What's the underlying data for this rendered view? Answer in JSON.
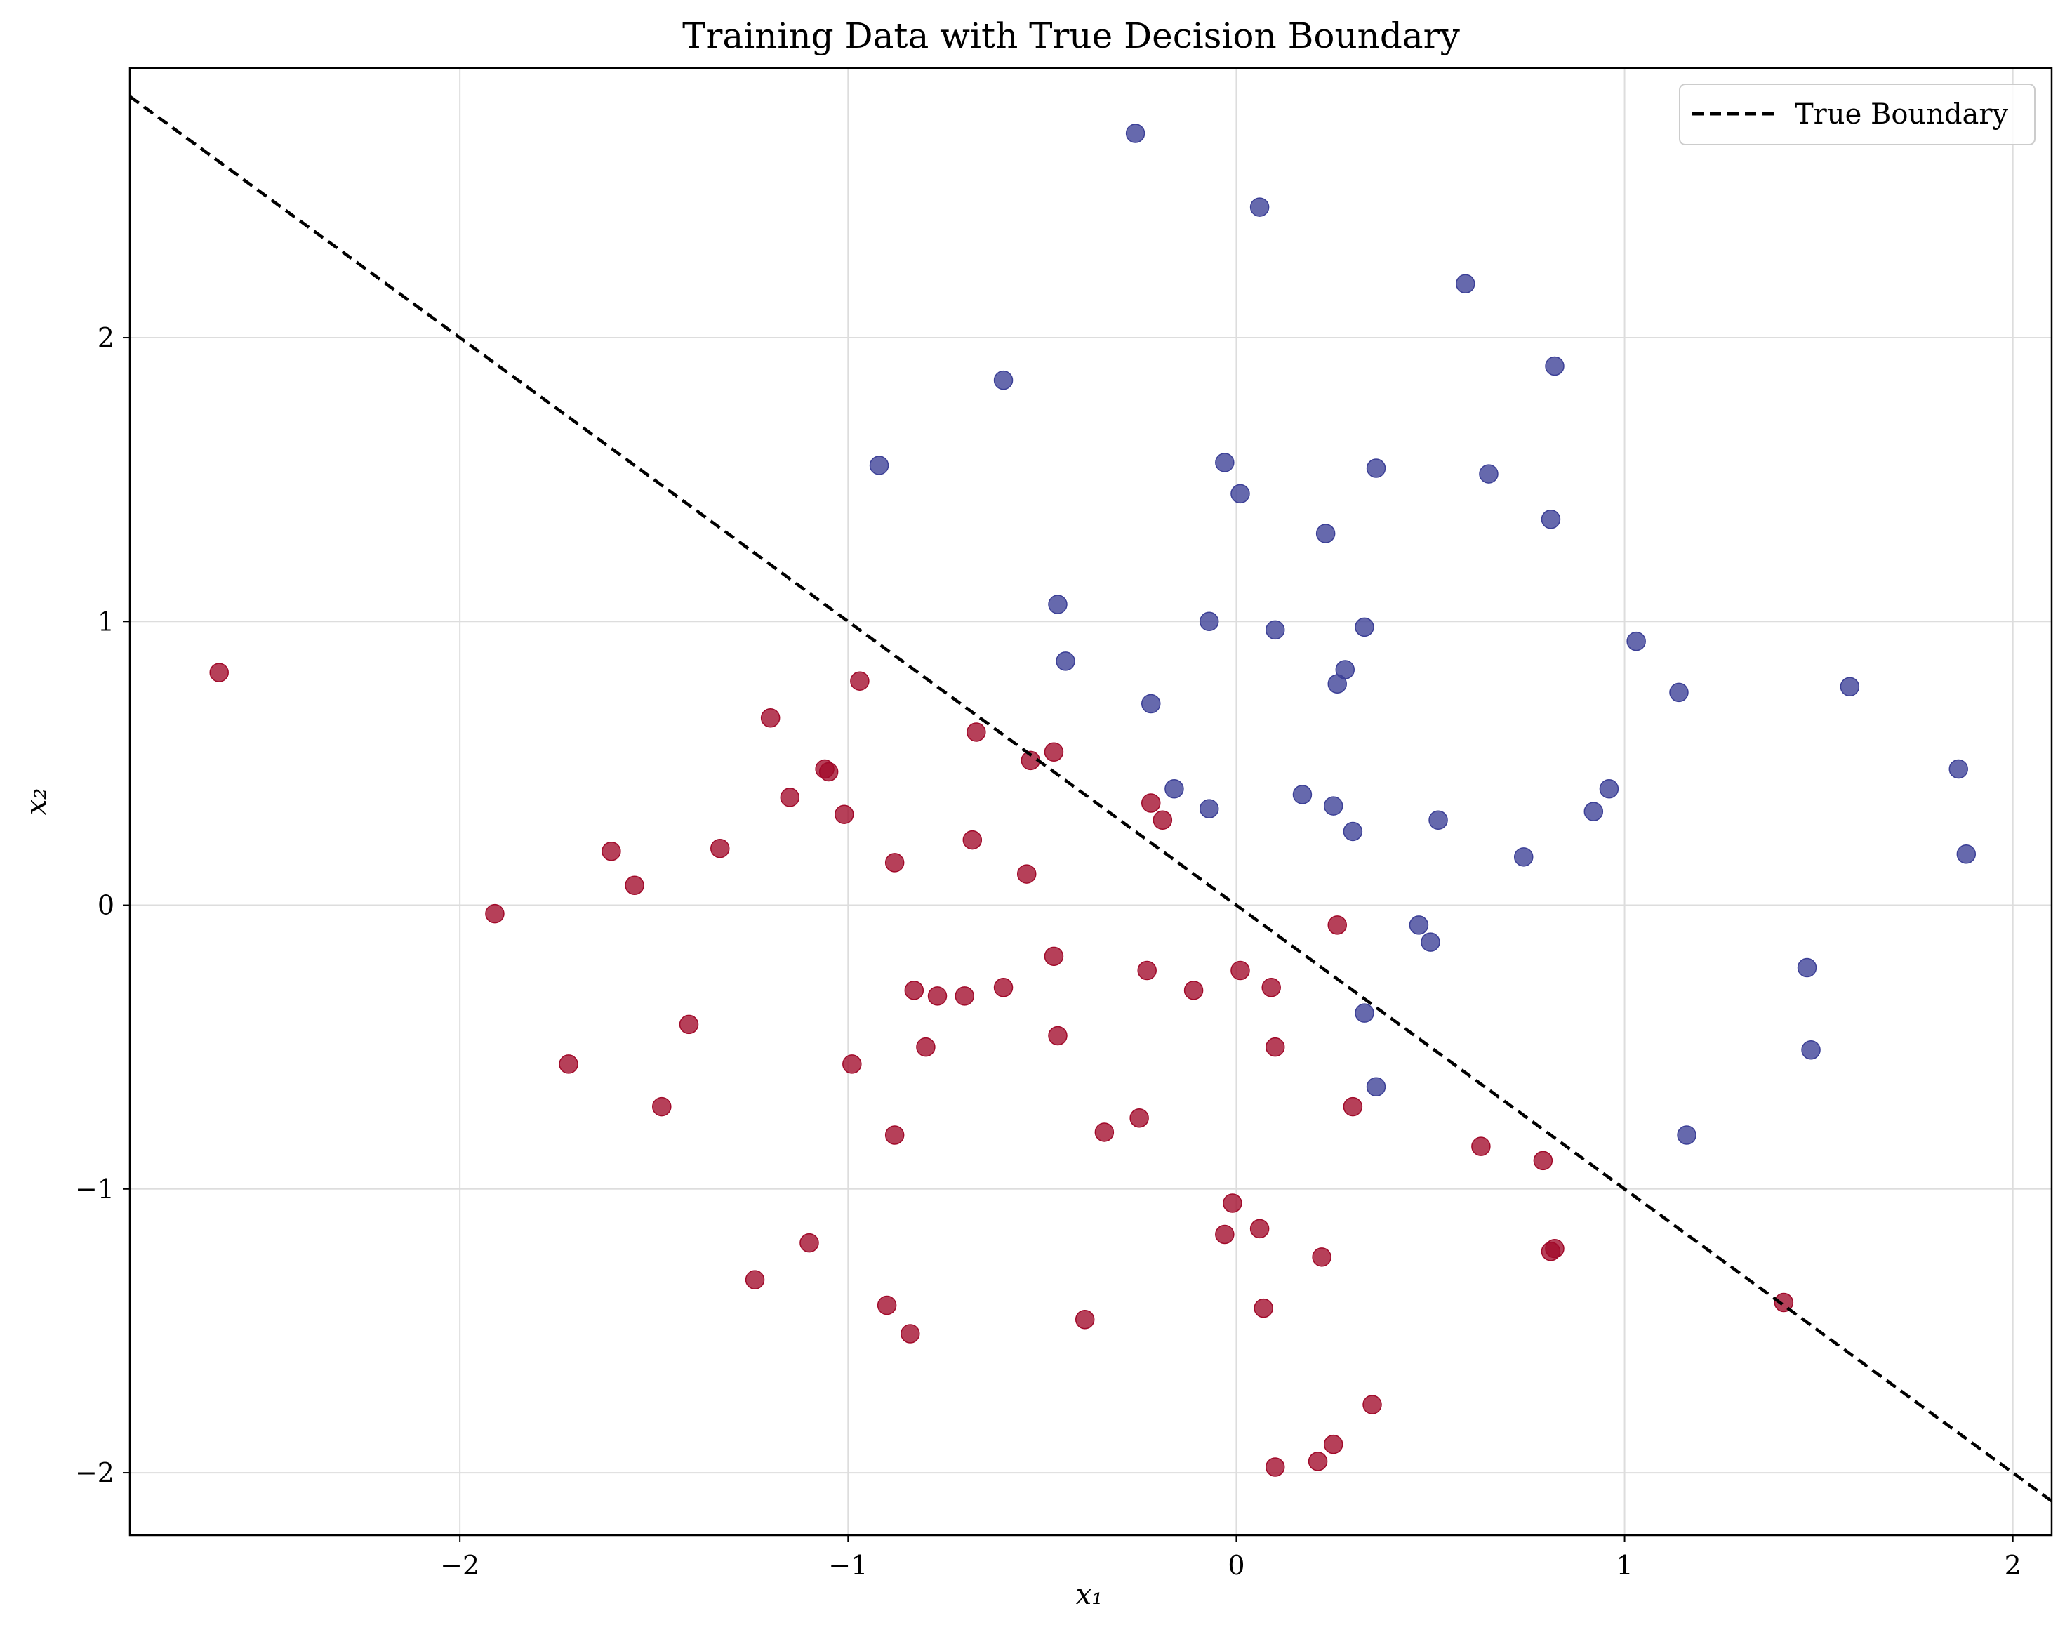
{
  "chart_data": {
    "type": "scatter",
    "title": "Training Data with True Decision Boundary",
    "xlabel": "x₁",
    "ylabel": "x₂",
    "xlim": [
      -2.85,
      2.1
    ],
    "ylim": [
      -2.22,
      2.95
    ],
    "xticks": [
      -2,
      -1,
      0,
      1,
      2
    ],
    "yticks": [
      -2,
      -1,
      0,
      1,
      2
    ],
    "xtick_labels": [
      "−2",
      "−1",
      "0",
      "1",
      "2"
    ],
    "ytick_labels": [
      "−2",
      "−1",
      "0",
      "1",
      "2"
    ],
    "grid": true,
    "legend_position": "top-right",
    "colors": {
      "class_positive": "#3b3f96",
      "class_negative": "#a10a2a",
      "boundary": "#000000",
      "grid": "#dddddd"
    },
    "series": [
      {
        "style": "points",
        "color": "#3b3f96",
        "x": [
          -0.26,
          0.06,
          0.59,
          -0.6,
          0.82,
          -0.92,
          -0.03,
          0.36,
          0.65,
          0.01,
          0.81,
          0.23,
          -0.46,
          -0.07,
          0.1,
          0.33,
          1.03,
          -0.44,
          0.28,
          0.26,
          1.14,
          1.58,
          -0.22,
          -0.16,
          -0.07,
          0.17,
          0.25,
          0.96,
          1.86,
          0.92,
          0.52,
          0.3,
          0.74,
          1.88,
          0.47,
          0.5,
          1.47,
          0.33,
          0.36,
          1.48,
          1.16
        ],
        "y": [
          2.72,
          2.46,
          2.19,
          1.85,
          1.9,
          1.55,
          1.56,
          1.54,
          1.52,
          1.45,
          1.36,
          1.31,
          1.06,
          1.0,
          0.97,
          0.98,
          0.93,
          0.86,
          0.83,
          0.78,
          0.75,
          0.77,
          0.71,
          0.41,
          0.34,
          0.39,
          0.35,
          0.41,
          0.48,
          0.33,
          0.3,
          0.26,
          0.17,
          0.18,
          -0.07,
          -0.13,
          -0.22,
          -0.38,
          -0.64,
          -0.51,
          -0.81
        ]
      },
      {
        "style": "points",
        "color": "#a10a2a",
        "x": [
          -2.62,
          -0.97,
          -1.2,
          -0.67,
          -0.47,
          -0.53,
          -1.06,
          -1.05,
          -1.15,
          -1.01,
          -0.22,
          -0.19,
          -1.33,
          -0.68,
          -1.61,
          -0.88,
          -0.54,
          -1.55,
          -1.91,
          0.26,
          -0.47,
          -0.23,
          0.01,
          0.09,
          -0.83,
          -0.6,
          -0.77,
          -0.7,
          -0.11,
          -1.41,
          -0.46,
          -1.72,
          -0.8,
          -0.99,
          0.1,
          -1.48,
          0.3,
          -0.25,
          -0.34,
          -0.88,
          0.63,
          0.79,
          -0.01,
          0.06,
          -0.03,
          -1.1,
          0.82,
          0.81,
          0.22,
          -1.24,
          1.41,
          -0.9,
          0.07,
          -0.39,
          -0.84,
          0.35,
          0.25,
          0.21,
          0.1
        ],
        "y": [
          0.82,
          0.79,
          0.66,
          0.61,
          0.54,
          0.51,
          0.48,
          0.47,
          0.38,
          0.32,
          0.36,
          0.3,
          0.2,
          0.23,
          0.19,
          0.15,
          0.11,
          0.07,
          -0.03,
          -0.07,
          -0.18,
          -0.23,
          -0.23,
          -0.29,
          -0.3,
          -0.29,
          -0.32,
          -0.32,
          -0.3,
          -0.42,
          -0.46,
          -0.56,
          -0.5,
          -0.56,
          -0.5,
          -0.71,
          -0.71,
          -0.75,
          -0.8,
          -0.81,
          -0.85,
          -0.9,
          -1.05,
          -1.14,
          -1.16,
          -1.19,
          -1.21,
          -1.22,
          -1.24,
          -1.32,
          -1.4,
          -1.41,
          -1.42,
          -1.46,
          -1.51,
          -1.76,
          -1.9,
          -1.96,
          -1.98
        ]
      },
      {
        "style": "dashed-line",
        "name": "True Boundary",
        "color": "#000000",
        "x": [
          -2.85,
          2.1
        ],
        "y": [
          2.85,
          -2.1
        ]
      }
    ]
  }
}
